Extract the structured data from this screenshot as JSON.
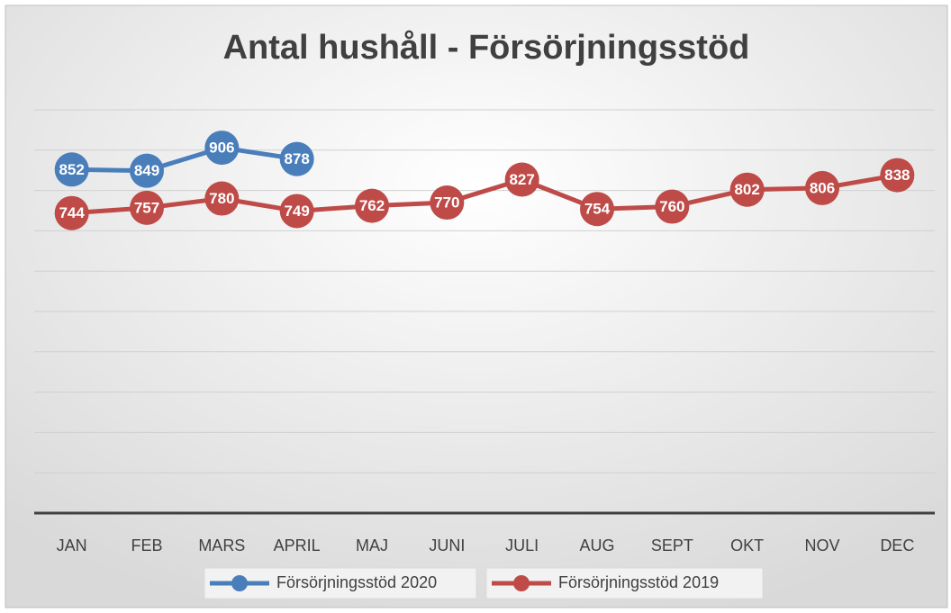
{
  "chart_data": {
    "type": "line",
    "title": "Antal hushåll - Försörjningsstöd",
    "categories": [
      "JAN",
      "FEB",
      "MARS",
      "APRIL",
      "MAJ",
      "JUNI",
      "JULI",
      "AUG",
      "SEPT",
      "OKT",
      "NOV",
      "DEC"
    ],
    "series": [
      {
        "name": "Försörjningsstöd 2020",
        "color": "#4a7ebb",
        "values": [
          852,
          849,
          906,
          878,
          null,
          null,
          null,
          null,
          null,
          null,
          null,
          null
        ]
      },
      {
        "name": "Försörjningsstöd 2019",
        "color": "#be4b48",
        "values": [
          744,
          757,
          780,
          749,
          762,
          770,
          827,
          754,
          760,
          802,
          806,
          838
        ]
      }
    ],
    "ylim": [
      0,
      1000
    ],
    "yticks": [
      0,
      100,
      200,
      300,
      400,
      500,
      600,
      700,
      800,
      900,
      1000
    ],
    "grid": true,
    "legend": "bottom"
  }
}
